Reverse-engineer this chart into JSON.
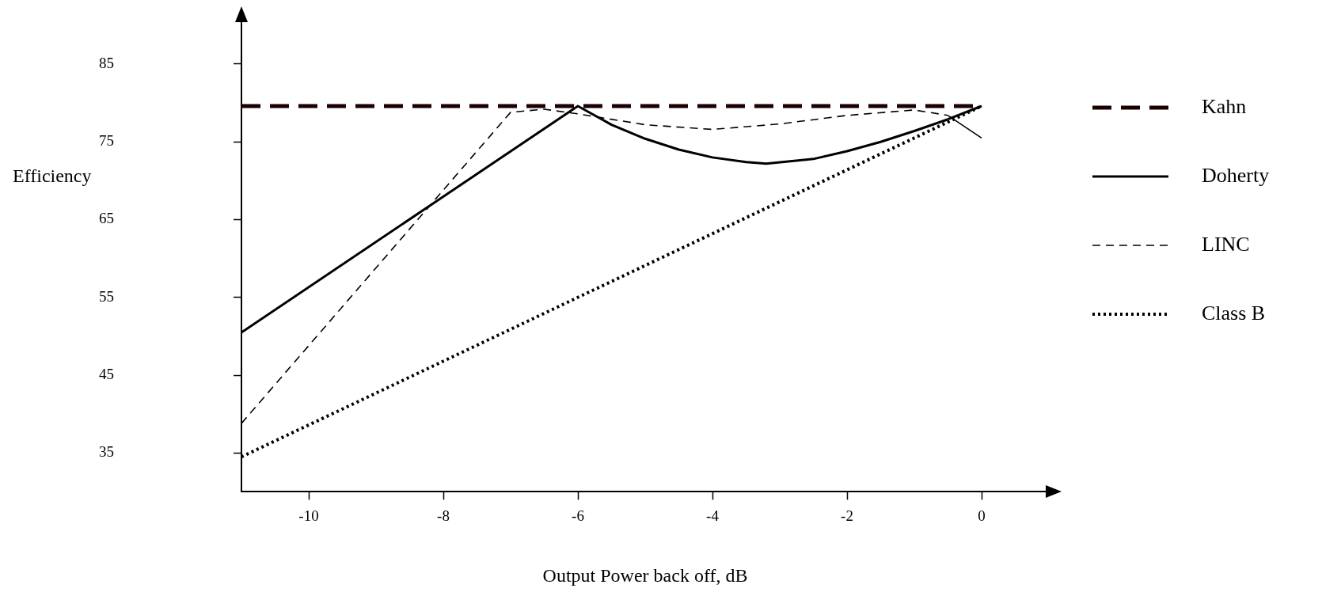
{
  "chart_data": {
    "type": "line",
    "xlabel": "Output Power back off, dB",
    "ylabel": "Efficiency",
    "xlim": [
      -11,
      1
    ],
    "ylim": [
      30,
      91
    ],
    "xticks": [
      -10,
      -8,
      -6,
      -4,
      -2,
      0
    ],
    "yticks": [
      35,
      45,
      55,
      65,
      75,
      85
    ],
    "legend": "right",
    "marker": "none",
    "series": [
      {
        "name": "Kahn",
        "color": "#1a0000",
        "line_style": "dashed",
        "x": [
          -11,
          0
        ],
        "values": [
          79.6,
          79.6
        ]
      },
      {
        "name": "Doherty",
        "color": "#000000",
        "line_style": "solid",
        "x": [
          -11,
          -6,
          -5.5,
          -5,
          -4.5,
          -4,
          -3.5,
          -3.2,
          -2.5,
          -2,
          -1.5,
          -1,
          -0.5,
          0
        ],
        "values": [
          50.5,
          79.6,
          77.2,
          75.4,
          74,
          73,
          72.4,
          72.2,
          72.8,
          73.8,
          75,
          76.4,
          77.9,
          79.6
        ]
      },
      {
        "name": "LINC",
        "color": "#000000",
        "line_style": "dashed",
        "x": [
          -11,
          -7,
          -6.5,
          -6,
          -5,
          -4,
          -3,
          -2,
          -1,
          -0.5,
          0
        ],
        "values": [
          38.8,
          78.8,
          79.2,
          78.6,
          77.2,
          76.6,
          77.3,
          78.4,
          79.1,
          78.4,
          75.5
        ]
      },
      {
        "name": "Class B",
        "color": "#000000",
        "line_style": "dotted",
        "x": [
          -11,
          0
        ],
        "values": [
          34.5,
          79.6
        ]
      }
    ]
  }
}
